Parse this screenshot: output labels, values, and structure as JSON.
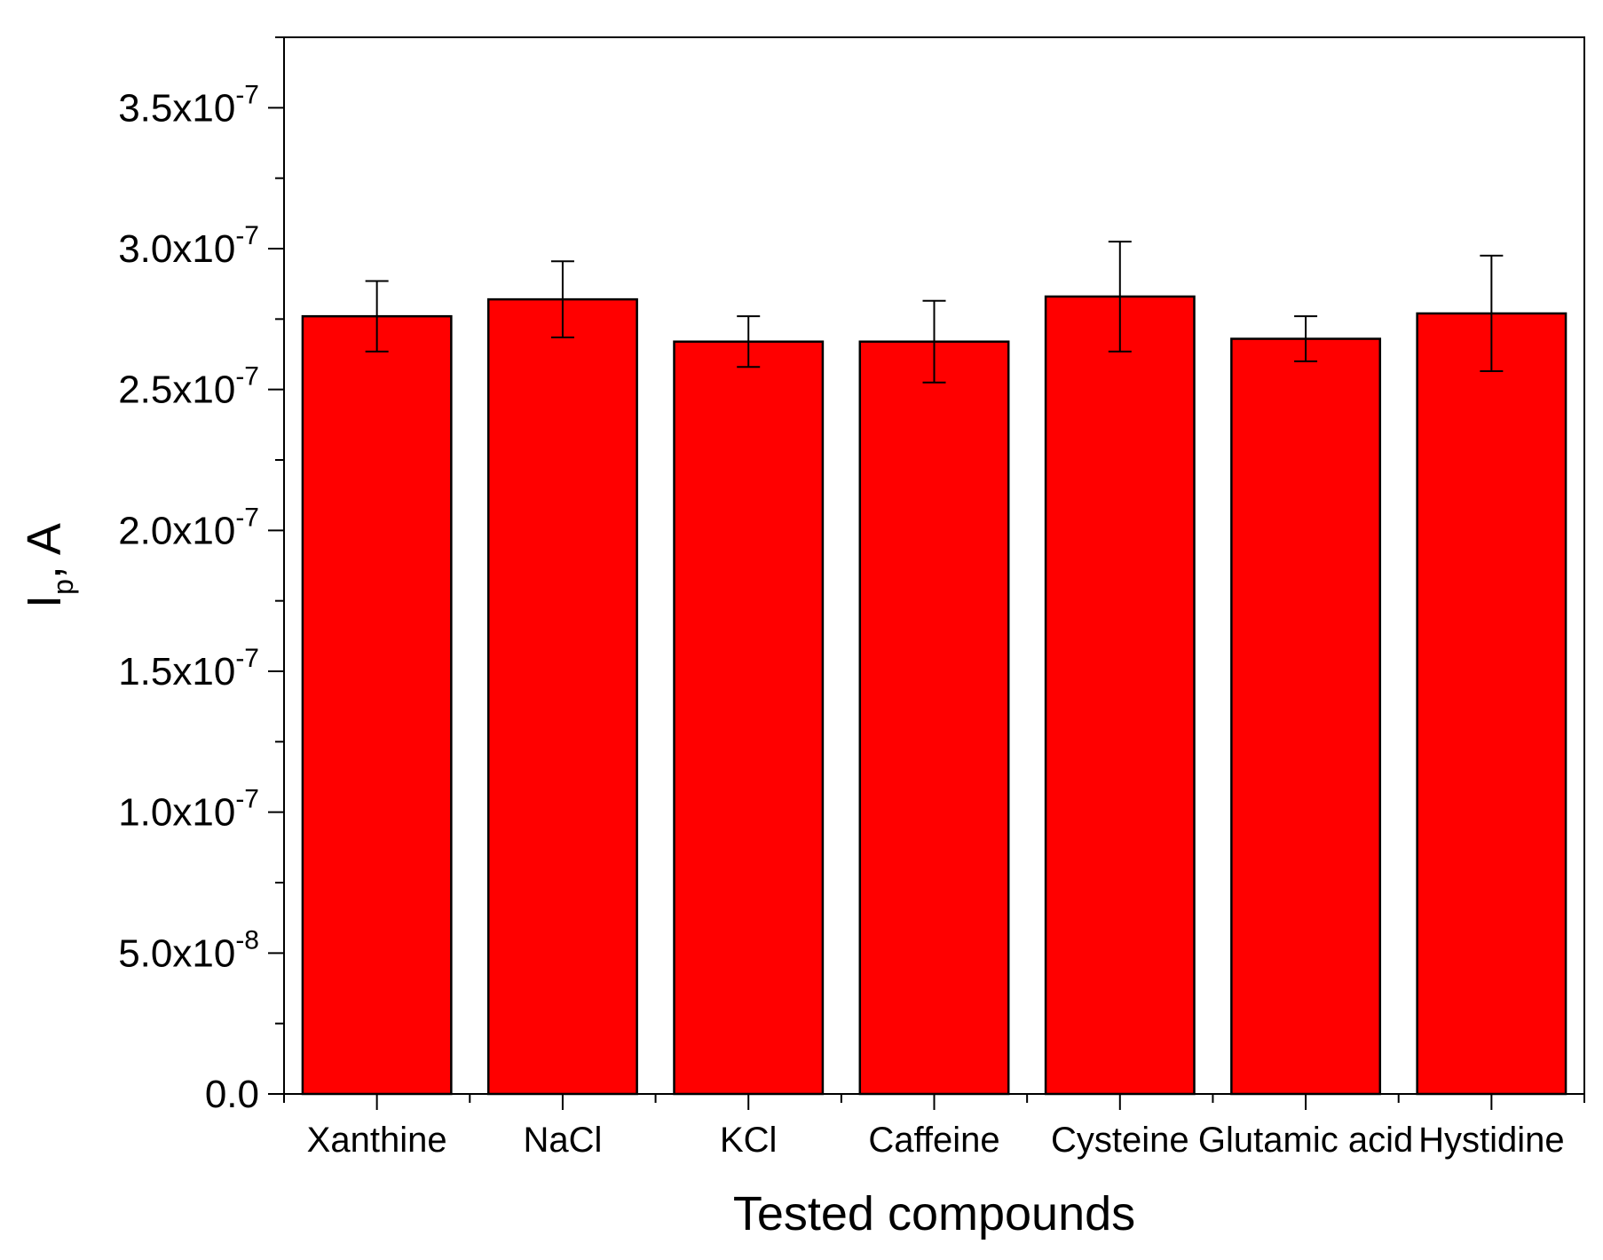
{
  "chart_data": {
    "type": "bar",
    "categories": [
      "Xanthine",
      "NaCl",
      "KCl",
      "Caffeine",
      "Cysteine",
      "Glutamic acid",
      "Hystidine"
    ],
    "values": [
      2.76e-07,
      2.82e-07,
      2.67e-07,
      2.67e-07,
      2.83e-07,
      2.68e-07,
      2.77e-07
    ],
    "errors": [
      1.25e-08,
      1.35e-08,
      9e-09,
      1.45e-08,
      1.95e-08,
      8e-09,
      2.05e-08
    ],
    "bar_color": "#ff0000",
    "xlabel": "Tested compounds",
    "ylabel": {
      "main": "I",
      "sub": "p",
      "rest": ", A"
    },
    "ylim": [
      0,
      3.75e-07
    ],
    "yticks": [
      {
        "value": 0,
        "mantissa": "0.0",
        "exp": ""
      },
      {
        "value": 5e-08,
        "mantissa": "5.0x10",
        "exp": "-8"
      },
      {
        "value": 1e-07,
        "mantissa": "1.0x10",
        "exp": "-7"
      },
      {
        "value": 1.5e-07,
        "mantissa": "1.5x10",
        "exp": "-7"
      },
      {
        "value": 2e-07,
        "mantissa": "2.0x10",
        "exp": "-7"
      },
      {
        "value": 2.5e-07,
        "mantissa": "2.5x10",
        "exp": "-7"
      },
      {
        "value": 3e-07,
        "mantissa": "3.0x10",
        "exp": "-7"
      },
      {
        "value": 3.5e-07,
        "mantissa": "3.5x10",
        "exp": "-7"
      }
    ],
    "grid": false,
    "legend": "none"
  }
}
